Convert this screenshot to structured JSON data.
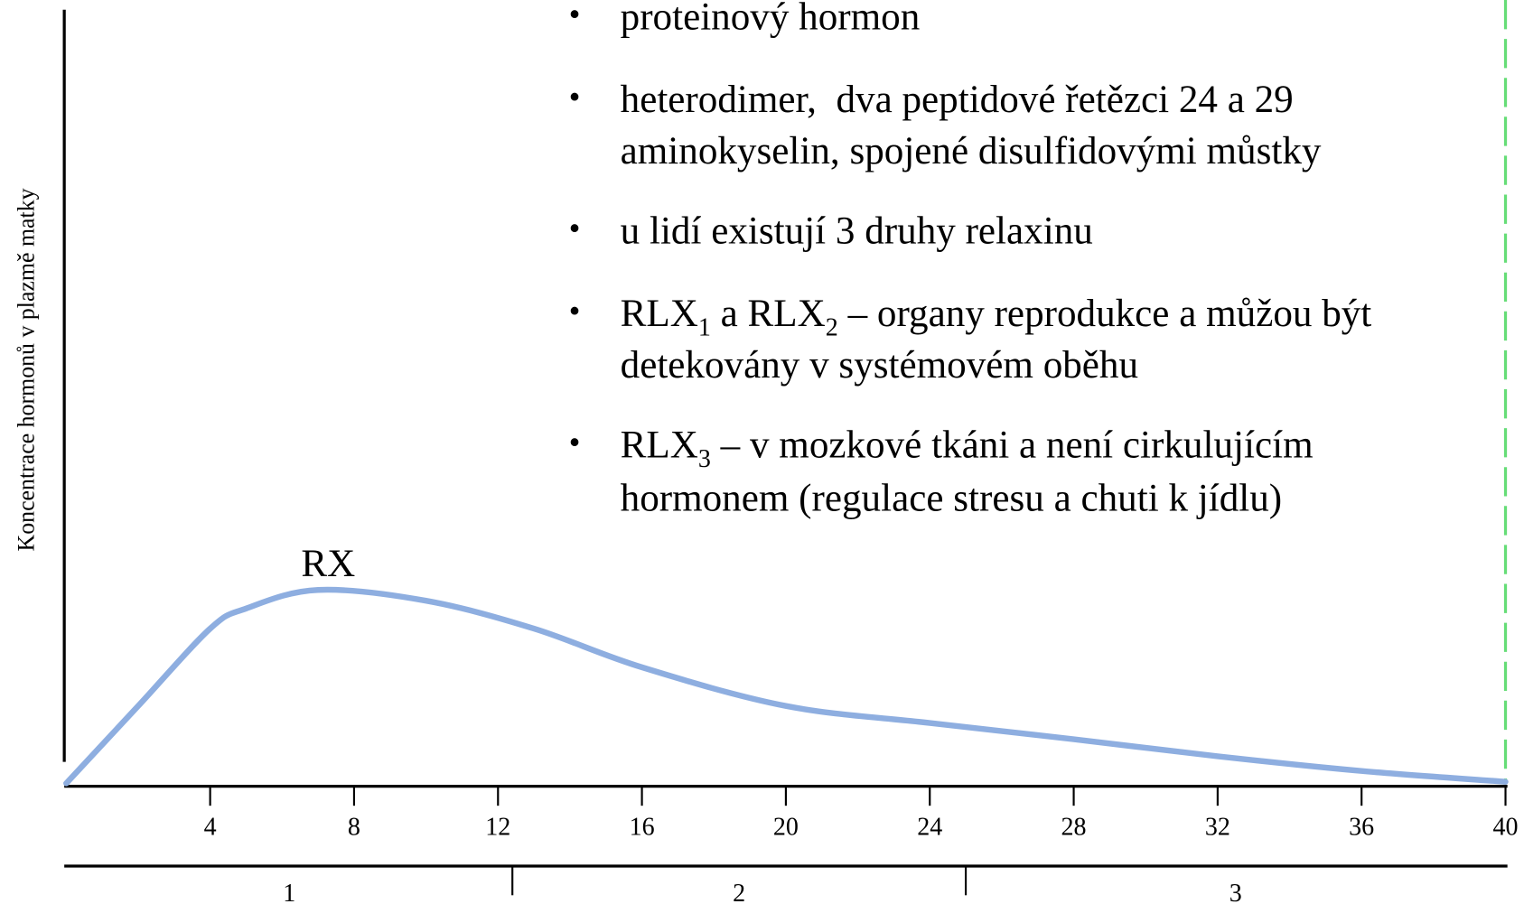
{
  "chart_data": {
    "type": "line",
    "y_axis_label": "Koncentrace hormonů v plazmě matky",
    "annotation": "RX",
    "x": [
      0,
      2,
      4,
      5,
      7,
      10,
      13,
      16,
      20,
      24,
      28,
      32,
      36,
      40
    ],
    "series": [
      {
        "name": "RX",
        "color": "#8eaee0",
        "values": [
          0,
          10,
          20,
          22.6,
          25,
          23.6,
          20,
          15,
          10,
          7.8,
          5.7,
          3.5,
          1.6,
          0.2
        ]
      }
    ],
    "xlim": [
      0,
      40
    ],
    "xticks": [
      4,
      8,
      12,
      16,
      20,
      24,
      28,
      32,
      36,
      40
    ],
    "ylim": [
      0,
      100
    ],
    "marker_line": {
      "x": 40,
      "color": "#66dd77"
    },
    "trimesters": {
      "labels": [
        "1",
        "2",
        "3"
      ],
      "boundaries": [
        12.4,
        25
      ]
    },
    "bullets": [
      {
        "lines": [
          [
            "proteinový hormon"
          ]
        ]
      },
      {
        "lines": [
          [
            "heterodimer,  dva peptidové řetězci 24 a 29"
          ],
          [
            "aminokyselin, spojené disulfidovými můstky"
          ]
        ]
      },
      {
        "lines": [
          [
            "u lidí existují 3 druhy relaxinu"
          ]
        ]
      },
      {
        "lines": [
          [
            "RLX",
            {
              "sub": "1"
            },
            " a RLX",
            {
              "sub": "2"
            },
            " – organy reprodukce a můžou být"
          ],
          [
            "detekovány v systémovém oběhu"
          ]
        ]
      },
      {
        "lines": [
          [
            "RLX",
            {
              "sub": "3"
            },
            " – v mozkové tkáni a není cirkulujícím"
          ],
          [
            "hormonem (regulace stresu a chuti k jídlu)"
          ]
        ]
      }
    ]
  }
}
